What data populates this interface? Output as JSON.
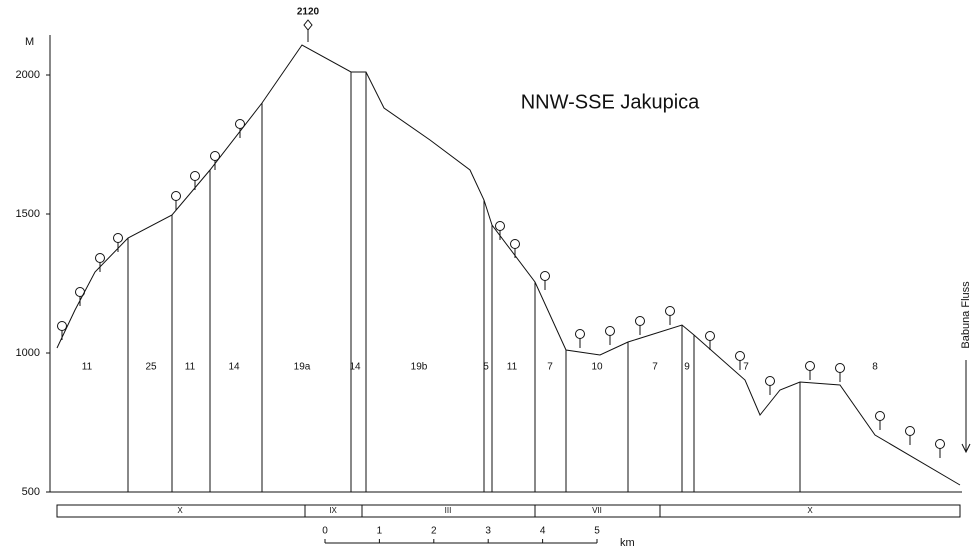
{
  "header": {
    "title": "NNW-SSE  Jakupica"
  },
  "axis": {
    "unit": "M",
    "ticks": [
      2000,
      1500,
      1000,
      500
    ]
  },
  "summit": {
    "label": "2120"
  },
  "segments": [
    "11",
    "25",
    "11",
    "14",
    "19a",
    "14",
    "19b",
    "5",
    "11",
    "7",
    "10",
    "7",
    "9",
    "7",
    "8"
  ],
  "zones": [
    "X",
    "IX",
    "III",
    "VII",
    "X"
  ],
  "scale": {
    "labels": [
      "0",
      "1",
      "2",
      "3",
      "4",
      "5"
    ],
    "unit": "km"
  },
  "river": {
    "label": "Babuna Fluss"
  }
}
